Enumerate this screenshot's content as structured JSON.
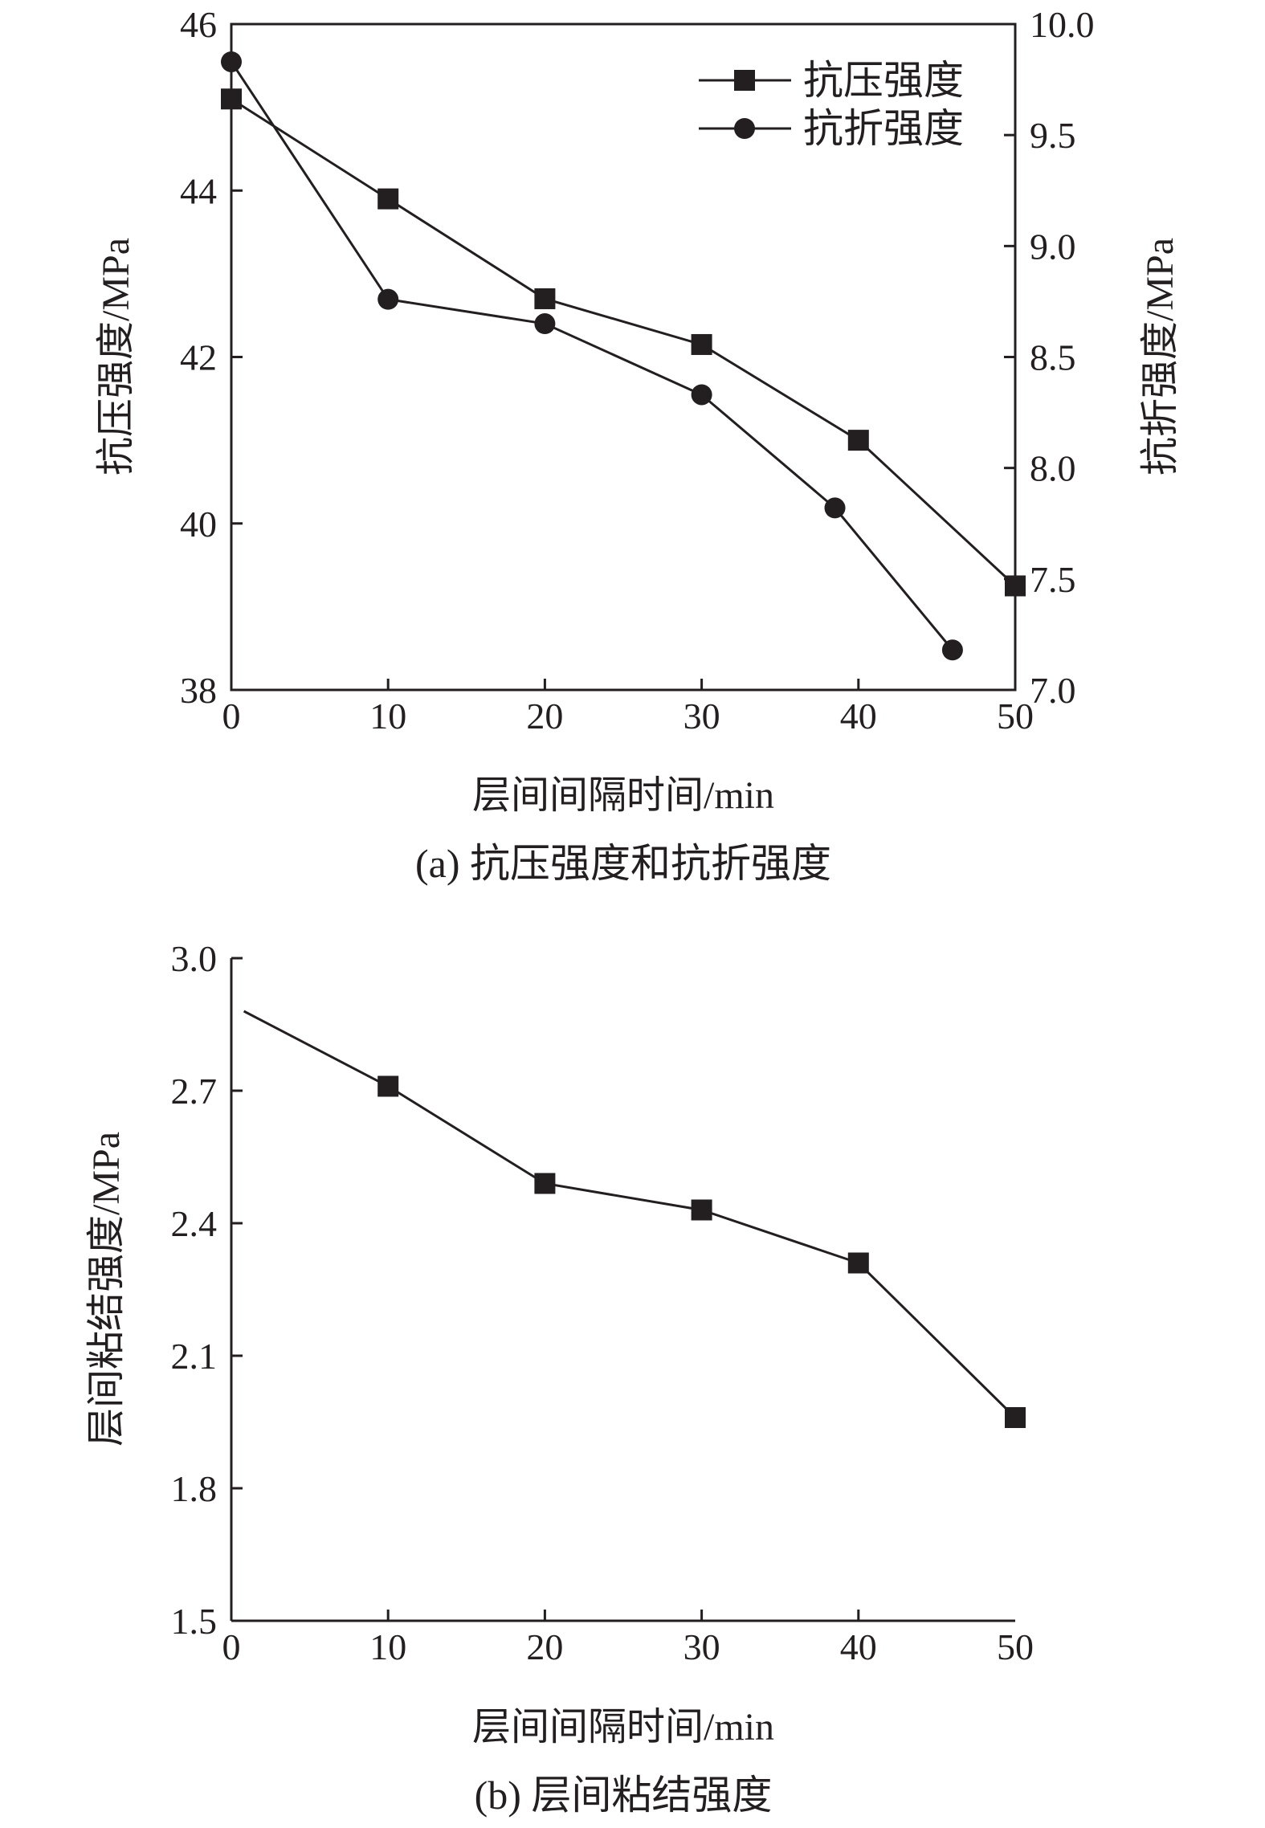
{
  "chart_data": [
    {
      "id": "a",
      "type": "line",
      "caption": "(a) 抗压强度和抗折强度",
      "xlabel": "层间间隔时间/min",
      "ylabel_left": "抗压强度/MPa",
      "ylabel_right": "抗折强度/MPa",
      "xlim": [
        0,
        50
      ],
      "xticks": [
        "0",
        "10",
        "20",
        "30",
        "40",
        "50"
      ],
      "ylim_left": [
        38,
        46
      ],
      "yticks_left": [
        "38",
        "40",
        "42",
        "44",
        "46"
      ],
      "ylim_right": [
        7.0,
        10.0
      ],
      "yticks_right": [
        "7.0",
        "7.5",
        "8.0",
        "8.5",
        "9.0",
        "9.5",
        "10.0"
      ],
      "legend_position": "top-right",
      "grid": false,
      "series": [
        {
          "name": "抗压强度",
          "axis": "left",
          "marker": "square",
          "x": [
            0,
            10,
            20,
            30,
            40,
            50
          ],
          "y": [
            45.1,
            43.9,
            42.7,
            42.15,
            41.0,
            39.25
          ]
        },
        {
          "name": "抗折强度",
          "axis": "right",
          "marker": "circle",
          "x": [
            0,
            10,
            20,
            30,
            38.5,
            46
          ],
          "y": [
            9.83,
            8.76,
            8.65,
            8.33,
            7.82,
            7.18
          ]
        }
      ]
    },
    {
      "id": "b",
      "type": "line",
      "caption": "(b) 层间粘结强度",
      "xlabel": "层间间隔时间/min",
      "ylabel": "层间粘结强度/MPa",
      "xlim": [
        0,
        50
      ],
      "xticks": [
        "0",
        "10",
        "20",
        "30",
        "40",
        "50"
      ],
      "ylim": [
        1.5,
        3.0
      ],
      "yticks": [
        "1.5",
        "1.8",
        "2.1",
        "2.4",
        "2.7",
        "3.0"
      ],
      "grid": false,
      "series": [
        {
          "marker": "square",
          "line_start": {
            "x": 0.8,
            "y": 2.88
          },
          "x": [
            10,
            20,
            30,
            40,
            50
          ],
          "y": [
            2.71,
            2.49,
            2.43,
            2.31,
            1.96
          ]
        }
      ]
    }
  ]
}
